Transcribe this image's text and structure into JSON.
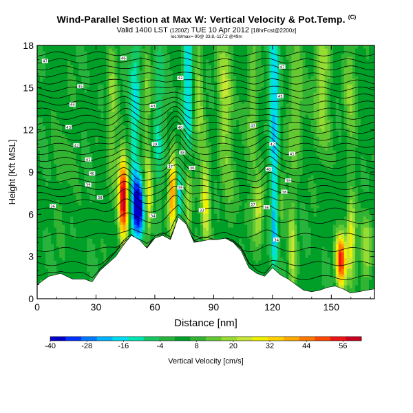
{
  "header": {
    "title": "Wind-Parallel Section at Max W: Vertical Velocity & Pot.Temp.",
    "title_mark": "(C)",
    "subtitle_main": "Valid 1400 LST (1200Z) TUE 10 Apr 2012",
    "subtitle_run": "[18hrFcst@2200z]",
    "subtitle_valid_prefix": "Valid 1400 LST",
    "subtitle_valid_z": "(1200Z)",
    "subtitle_date": "TUE 10 Apr 2012",
    "info_line": "loc:Wmax=-90@ 33.8,-117.2 @49m"
  },
  "chart_data": {
    "type": "heatmap",
    "title": "Wind-Parallel Section at Max W: Vertical Velocity & Pot.Temp.",
    "xlabel": "Distance [nm]",
    "ylabel": "Height [Kft MSL]",
    "xlim": [
      0,
      172
    ],
    "ylim": [
      0,
      18
    ],
    "x_ticks": [
      "0",
      "30",
      "60",
      "90",
      "120",
      "150"
    ],
    "x_tick_values": [
      0,
      30,
      60,
      90,
      120,
      150
    ],
    "y_ticks": [
      "0",
      "3",
      "6",
      "9",
      "12",
      "15",
      "18"
    ],
    "y_tick_values": [
      0,
      3,
      6,
      9,
      12,
      15,
      18
    ],
    "colorbar": {
      "label": "Vertical Velocity [cm/s]",
      "tick_labels": [
        "-40",
        "-28",
        "-16",
        "-4",
        "8",
        "20",
        "32",
        "44",
        "56"
      ],
      "tick_values": [
        -40,
        -28,
        -16,
        -4,
        8,
        20,
        32,
        44,
        56
      ],
      "range": [
        -40,
        62
      ],
      "colors": [
        "#0000c8",
        "#0032ff",
        "#0078ff",
        "#00b4ff",
        "#00dcf0",
        "#00e6b4",
        "#14c864",
        "#28b43c",
        "#00a028",
        "#32b432",
        "#64c832",
        "#96dc32",
        "#c8e632",
        "#f0f000",
        "#ffd200",
        "#ffaa00",
        "#ff7800",
        "#ff4600",
        "#f01414",
        "#c8001e"
      ]
    },
    "terrain": {
      "x": [
        0,
        6,
        12,
        18,
        24,
        28,
        32,
        36,
        40,
        44,
        48,
        52,
        56,
        60,
        64,
        68,
        72,
        76,
        80,
        84,
        88,
        92,
        96,
        100,
        104,
        108,
        112,
        116,
        120,
        124,
        128,
        132,
        136,
        140,
        144,
        148,
        152,
        156,
        160,
        164,
        168,
        172
      ],
      "height_kft": [
        1.0,
        1.6,
        1.8,
        1.4,
        1.4,
        1.2,
        2.0,
        2.5,
        3.0,
        3.8,
        4.5,
        4.2,
        3.6,
        4.3,
        4.5,
        4.2,
        5.8,
        5.3,
        4.0,
        4.1,
        4.2,
        4.2,
        4.3,
        4.0,
        3.4,
        2.2,
        1.8,
        1.6,
        2.2,
        1.7,
        1.4,
        1.0,
        0.6,
        0.5,
        0.6,
        0.8,
        0.9,
        0.7,
        0.4,
        0.5,
        0.6,
        0.7
      ]
    },
    "vertical_velocity_features": [
      {
        "x": 44,
        "z": 7.2,
        "sx": 1.8,
        "sz": 2.2,
        "w": 58
      },
      {
        "x": 49,
        "z": 6.5,
        "sx": 1.4,
        "sz": 1.6,
        "w": -8
      },
      {
        "x": 52,
        "z": 6.4,
        "sx": 2.2,
        "sz": 1.6,
        "w": -42
      },
      {
        "x": 57,
        "z": 7.0,
        "sx": 1.5,
        "sz": 1.8,
        "w": 28
      },
      {
        "x": 69,
        "z": 7.6,
        "sx": 1.4,
        "sz": 2.0,
        "w": 46
      },
      {
        "x": 73,
        "z": 7.6,
        "sx": 1.2,
        "sz": 1.6,
        "w": -18
      },
      {
        "x": 77,
        "z": 7.0,
        "sx": 1.6,
        "sz": 2.0,
        "w": 20
      },
      {
        "x": 86,
        "z": 7.0,
        "sx": 1.6,
        "sz": 2.5,
        "w": 24
      },
      {
        "x": 113,
        "z": 6.4,
        "sx": 1.8,
        "sz": 1.8,
        "w": 24
      },
      {
        "x": 121,
        "z": 5.0,
        "sx": 1.3,
        "sz": 2.5,
        "w": -22
      },
      {
        "x": 124,
        "z": 7.2,
        "sx": 2.0,
        "sz": 2.5,
        "w": 14
      },
      {
        "x": 130,
        "z": 3.0,
        "sx": 1.5,
        "sz": 2.5,
        "w": 20
      },
      {
        "x": 155,
        "z": 2.8,
        "sx": 1.8,
        "sz": 1.4,
        "w": 52
      },
      {
        "x": 160,
        "z": 4.0,
        "sx": 1.6,
        "sz": 2.0,
        "w": 30
      },
      {
        "x": 168,
        "z": 3.5,
        "sx": 2.0,
        "sz": 2.0,
        "w": 20
      },
      {
        "x": 38,
        "z": 13.0,
        "sx": 2.0,
        "sz": 5.0,
        "w": 14
      },
      {
        "x": 50,
        "z": 13.5,
        "sx": 2.0,
        "sz": 5.0,
        "w": -18
      },
      {
        "x": 56,
        "z": 14.0,
        "sx": 1.8,
        "sz": 4.0,
        "w": 16
      },
      {
        "x": 62,
        "z": 12.5,
        "sx": 2.0,
        "sz": 4.0,
        "w": -14
      },
      {
        "x": 77,
        "z": 15.0,
        "sx": 2.2,
        "sz": 4.0,
        "w": -18
      },
      {
        "x": 82,
        "z": 14.0,
        "sx": 2.0,
        "sz": 4.0,
        "w": 16
      },
      {
        "x": 96,
        "z": 15.0,
        "sx": 3.0,
        "sz": 4.0,
        "w": 18
      },
      {
        "x": 110,
        "z": 14.0,
        "sx": 2.0,
        "sz": 4.0,
        "w": 14
      },
      {
        "x": 121,
        "z": 13.0,
        "sx": 2.0,
        "sz": 5.0,
        "w": -22
      },
      {
        "x": 132,
        "z": 14.0,
        "sx": 2.5,
        "sz": 4.0,
        "w": 16
      },
      {
        "x": 145,
        "z": 15.0,
        "sx": 3.0,
        "sz": 4.0,
        "w": 18
      },
      {
        "x": 160,
        "z": 15.0,
        "sx": 3.0,
        "sz": 4.0,
        "w": 12
      },
      {
        "x": 14,
        "z": 10.0,
        "sx": 4.0,
        "sz": 4.0,
        "w": 6
      },
      {
        "x": 100,
        "z": 8.0,
        "sx": 4.0,
        "sz": 3.0,
        "w": 6
      }
    ],
    "pot_temp_contour_base_kft": [
      1.5,
      2.5,
      3.5,
      4.5,
      5.5,
      6.3,
      6.9,
      7.4,
      7.9,
      8.4,
      8.9,
      9.4,
      9.9,
      10.4,
      10.9,
      11.4,
      11.9,
      12.4,
      12.9,
      13.4,
      13.9,
      14.4,
      14.9,
      15.4,
      15.9,
      16.4,
      16.9,
      17.4
    ],
    "contour_labels": [
      {
        "text": "47",
        "x": 4,
        "z": 16.9
      },
      {
        "text": "45",
        "x": 22,
        "z": 15.1
      },
      {
        "text": "44",
        "x": 18,
        "z": 13.8
      },
      {
        "text": "43",
        "x": 16,
        "z": 12.2
      },
      {
        "text": "42",
        "x": 20,
        "z": 10.9
      },
      {
        "text": "41",
        "x": 26,
        "z": 9.9
      },
      {
        "text": "40",
        "x": 28,
        "z": 8.9
      },
      {
        "text": "39",
        "x": 26,
        "z": 8.1
      },
      {
        "text": "38",
        "x": 32,
        "z": 7.2
      },
      {
        "text": "36",
        "x": 8,
        "z": 6.6
      },
      {
        "text": "46",
        "x": 44,
        "z": 17.1
      },
      {
        "text": "43",
        "x": 59,
        "z": 13.7
      },
      {
        "text": "42",
        "x": 73,
        "z": 15.7
      },
      {
        "text": "40",
        "x": 73,
        "z": 12.2
      },
      {
        "text": "39",
        "x": 60,
        "z": 11.0
      },
      {
        "text": "38",
        "x": 74,
        "z": 10.4
      },
      {
        "text": "37",
        "x": 68,
        "z": 9.4
      },
      {
        "text": "36",
        "x": 79,
        "z": 9.3
      },
      {
        "text": "35",
        "x": 73,
        "z": 7.9
      },
      {
        "text": "34",
        "x": 59,
        "z": 5.9
      },
      {
        "text": "33",
        "x": 84,
        "z": 6.3
      },
      {
        "text": "47",
        "x": 125,
        "z": 16.5
      },
      {
        "text": "45",
        "x": 124,
        "z": 14.4
      },
      {
        "text": "43",
        "x": 110,
        "z": 12.3
      },
      {
        "text": "42",
        "x": 120,
        "z": 11.0
      },
      {
        "text": "41",
        "x": 130,
        "z": 10.3
      },
      {
        "text": "40",
        "x": 118,
        "z": 9.2
      },
      {
        "text": "39",
        "x": 128,
        "z": 8.4
      },
      {
        "text": "38",
        "x": 126,
        "z": 7.6
      },
      {
        "text": "37",
        "x": 110,
        "z": 6.7
      },
      {
        "text": "36",
        "x": 117,
        "z": 6.5
      },
      {
        "text": "34",
        "x": 122,
        "z": 4.2
      }
    ]
  }
}
